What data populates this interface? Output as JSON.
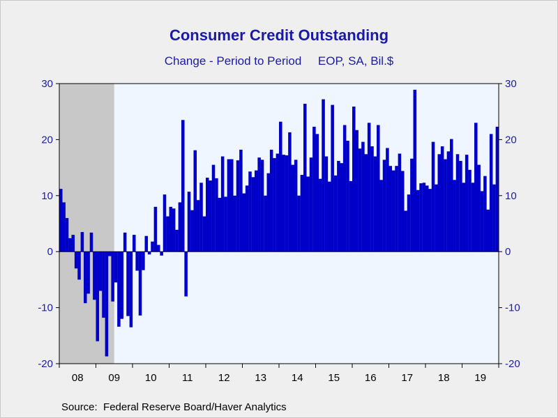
{
  "title": "Consumer Credit Outstanding",
  "subtitle": "Change - Period to Period     EOP, SA, Bil.$",
  "source": "Source:  Federal Reserve Board/Haver Analytics",
  "colors": {
    "bar": "#0000c8",
    "plot_background": "#f0f6ff",
    "recession_shade": "#c8c8c8",
    "axis_text": "#1a1aa6"
  },
  "chart_data": {
    "type": "bar",
    "frequency": "monthly",
    "start": "2008-01",
    "ylim": [
      -20,
      30
    ],
    "yticks": [
      -20,
      -10,
      0,
      10,
      20,
      30
    ],
    "dual_y_axis": true,
    "grid": false,
    "x_tick_labels": [
      "08",
      "09",
      "10",
      "11",
      "12",
      "13",
      "14",
      "15",
      "16",
      "17",
      "18",
      "19"
    ],
    "recession": {
      "start": "2008-01",
      "end": "2009-06"
    },
    "values": [
      11.2,
      8.8,
      6.0,
      2.4,
      3.0,
      -3.0,
      -5.0,
      3.5,
      -9.2,
      -7.5,
      3.4,
      -8.6,
      -16.0,
      -7.0,
      -11.8,
      -18.7,
      -0.8,
      -8.9,
      -5.5,
      -13.4,
      -12.0,
      3.4,
      -11.5,
      -13.5,
      3.0,
      -3.4,
      -11.4,
      -3.3,
      2.8,
      -0.5,
      1.8,
      8.0,
      1.2,
      -0.7,
      10.2,
      6.3,
      8.0,
      7.7,
      3.9,
      8.8,
      23.5,
      -8.0,
      10.7,
      7.4,
      18.1,
      9.2,
      12.3,
      6.3,
      13.2,
      12.7,
      15.5,
      13.1,
      9.6,
      17.0,
      9.8,
      16.5,
      16.5,
      10.0,
      16.3,
      18.2,
      10.4,
      11.8,
      14.3,
      13.3,
      14.5,
      16.8,
      16.4,
      10.0,
      14.0,
      18.2,
      16.7,
      17.5,
      23.2,
      17.3,
      17.2,
      21.3,
      15.5,
      16.4,
      10.0,
      13.7,
      26.4,
      13.4,
      16.8,
      22.3,
      21.0,
      13.0,
      27.2,
      17.0,
      12.5,
      26.2,
      13.6,
      16.2,
      15.8,
      22.6,
      19.8,
      12.6,
      25.9,
      21.7,
      18.4,
      19.6,
      17.4,
      23.0,
      18.8,
      17.0,
      22.6,
      12.8,
      16.4,
      18.5,
      15.3,
      14.5,
      15.3,
      17.5,
      14.4,
      7.3,
      10.2,
      16.6,
      28.9,
      11.0,
      12.2,
      12.3,
      11.8,
      11.2,
      19.6,
      12.0,
      17.4,
      18.8,
      16.5,
      17.9,
      20.1,
      12.8,
      17.4,
      16.2,
      12.3,
      17.3,
      14.6,
      12.3,
      23.0,
      15.5,
      10.8,
      13.5,
      7.5,
      21.0,
      12.0,
      22.3
    ]
  }
}
